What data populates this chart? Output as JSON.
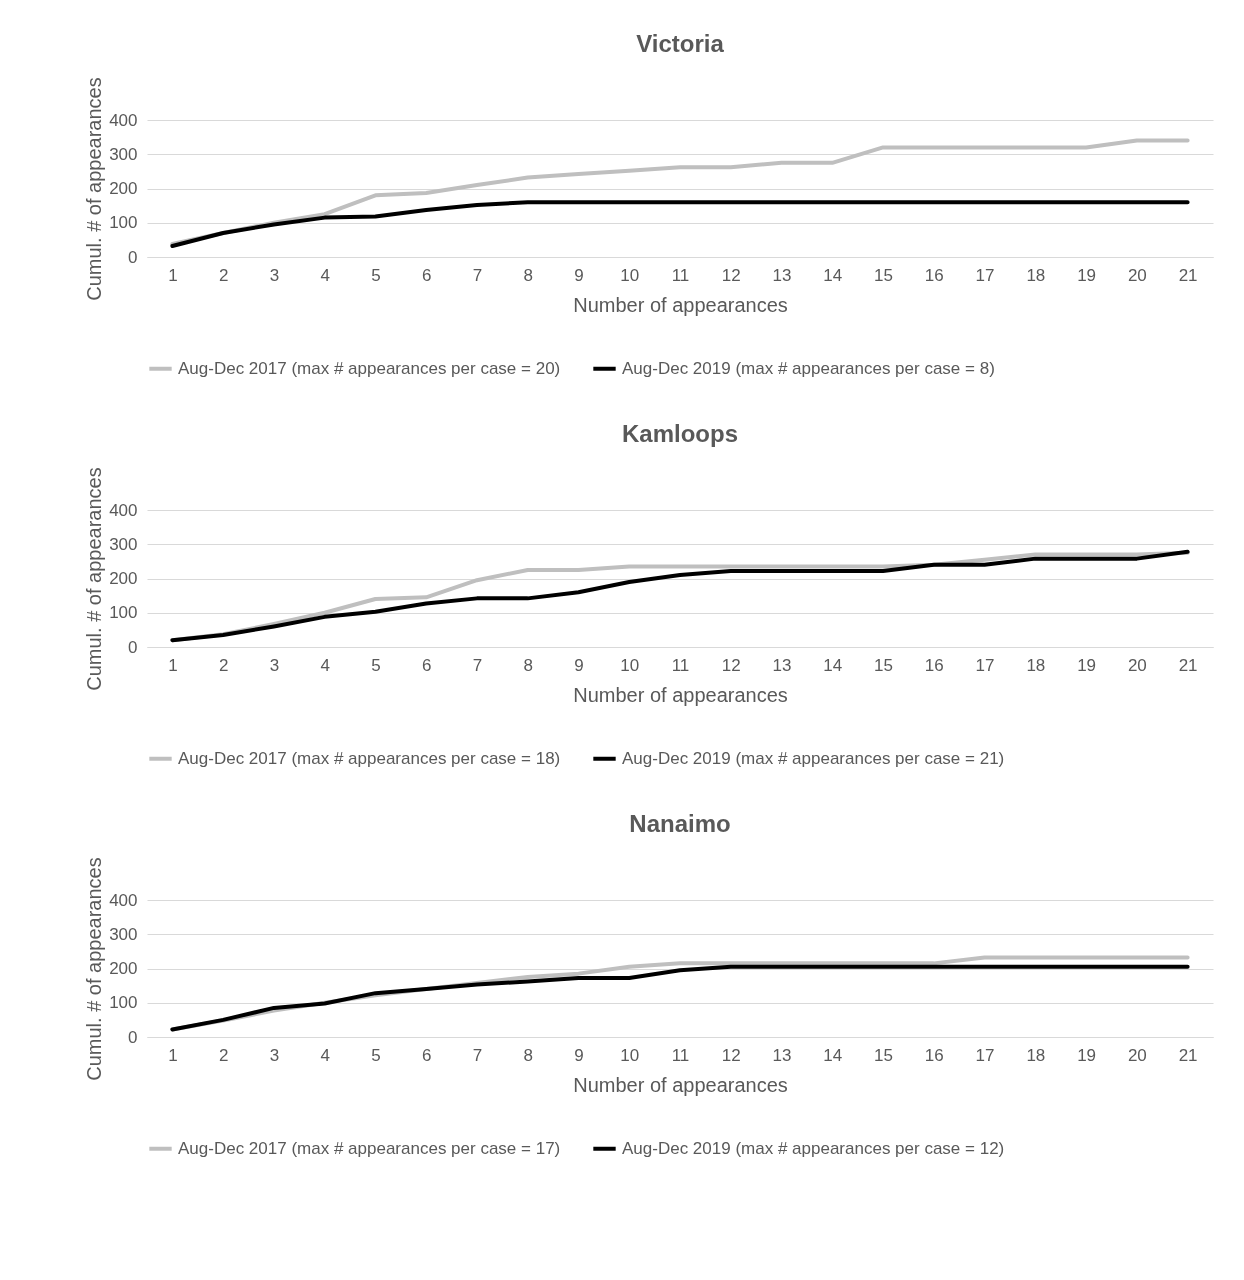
{
  "chart_data": [
    {
      "type": "line",
      "title": "Victoria",
      "xlabel": "Number of appearances",
      "ylabel": "Cumul. # of appearances",
      "x": [
        1,
        2,
        3,
        4,
        5,
        6,
        7,
        8,
        9,
        10,
        11,
        12,
        13,
        14,
        15,
        16,
        17,
        18,
        19,
        20,
        21
      ],
      "xlim": [
        0.5,
        21.5
      ],
      "xticks": [
        1,
        2,
        3,
        4,
        5,
        6,
        7,
        8,
        9,
        10,
        11,
        12,
        13,
        14,
        15,
        16,
        17,
        18,
        19,
        20,
        21
      ],
      "ylim": [
        0,
        400
      ],
      "yticks": [
        0,
        100,
        200,
        300,
        400
      ],
      "grid": "y",
      "legend": "bottom",
      "series": [
        {
          "name": "Aug-Dec 2017 (max # appearances per case = 20)",
          "color": "#bfbfbf",
          "values": [
            38,
            70,
            100,
            125,
            180,
            187,
            210,
            232,
            242,
            252,
            262,
            262,
            275,
            275,
            320,
            320,
            320,
            320,
            320,
            340,
            340
          ]
        },
        {
          "name": "Aug-Dec 2019 (max # appearances per case = 8)",
          "color": "#000000",
          "values": [
            32,
            70,
            95,
            115,
            118,
            137,
            152,
            160,
            160,
            160,
            160,
            160,
            160,
            160,
            160,
            160,
            160,
            160,
            160,
            160,
            160
          ]
        }
      ]
    },
    {
      "type": "line",
      "title": "Kamloops",
      "xlabel": "Number of appearances",
      "ylabel": "Cumul. # of appearances",
      "x": [
        1,
        2,
        3,
        4,
        5,
        6,
        7,
        8,
        9,
        10,
        11,
        12,
        13,
        14,
        15,
        16,
        17,
        18,
        19,
        20,
        21
      ],
      "xlim": [
        0.5,
        21.5
      ],
      "xticks": [
        1,
        2,
        3,
        4,
        5,
        6,
        7,
        8,
        9,
        10,
        11,
        12,
        13,
        14,
        15,
        16,
        17,
        18,
        19,
        20,
        21
      ],
      "ylim": [
        0,
        400
      ],
      "yticks": [
        0,
        100,
        200,
        300,
        400
      ],
      "grid": "y",
      "legend": "bottom",
      "series": [
        {
          "name": "Aug-Dec 2017 (max # appearances per case = 18)",
          "color": "#bfbfbf",
          "values": [
            20,
            37,
            67,
            100,
            140,
            145,
            195,
            225,
            225,
            235,
            235,
            235,
            235,
            235,
            235,
            240,
            255,
            270,
            270,
            270,
            275
          ]
        },
        {
          "name": "Aug-Dec 2019 (max # appearances per case = 21)",
          "color": "#000000",
          "values": [
            20,
            35,
            60,
            88,
            103,
            127,
            142,
            142,
            160,
            190,
            210,
            222,
            222,
            222,
            222,
            240,
            240,
            258,
            258,
            258,
            278
          ]
        }
      ]
    },
    {
      "type": "line",
      "title": "Nanaimo",
      "xlabel": "Number of appearances",
      "ylabel": "Cumul. # of appearances",
      "x": [
        1,
        2,
        3,
        4,
        5,
        6,
        7,
        8,
        9,
        10,
        11,
        12,
        13,
        14,
        15,
        16,
        17,
        18,
        19,
        20,
        21
      ],
      "xlim": [
        0.5,
        21.5
      ],
      "xticks": [
        1,
        2,
        3,
        4,
        5,
        6,
        7,
        8,
        9,
        10,
        11,
        12,
        13,
        14,
        15,
        16,
        17,
        18,
        19,
        20,
        21
      ],
      "ylim": [
        0,
        400
      ],
      "yticks": [
        0,
        100,
        200,
        300,
        400
      ],
      "grid": "y",
      "legend": "bottom",
      "series": [
        {
          "name": "Aug-Dec 2017 (max # appearances per case = 17)",
          "color": "#bfbfbf",
          "values": [
            22,
            48,
            77,
            100,
            122,
            140,
            158,
            175,
            185,
            205,
            215,
            215,
            215,
            215,
            215,
            215,
            232,
            232,
            232,
            232,
            232
          ]
        },
        {
          "name": "Aug-Dec 2019 (max # appearances per case = 12)",
          "color": "#000000",
          "values": [
            22,
            50,
            85,
            98,
            128,
            140,
            153,
            162,
            172,
            172,
            195,
            205,
            205,
            205,
            205,
            205,
            205,
            205,
            205,
            205,
            205
          ]
        }
      ]
    }
  ]
}
